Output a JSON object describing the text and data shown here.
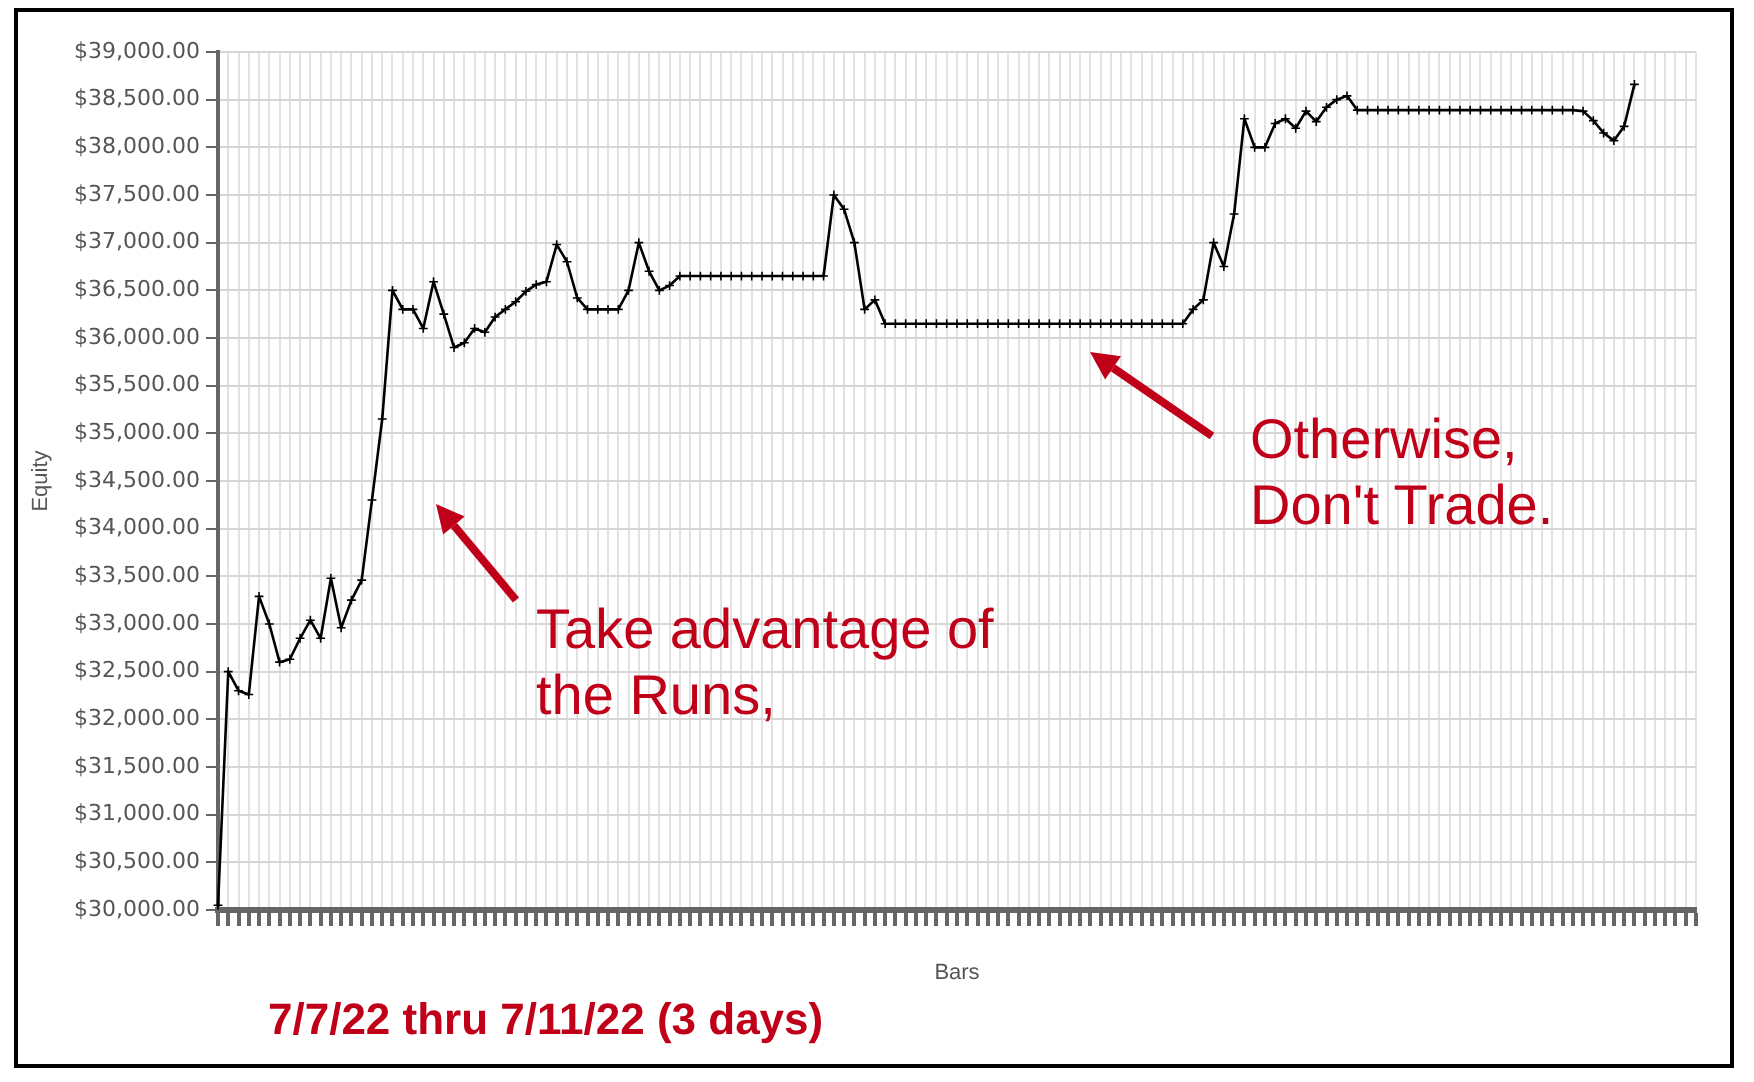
{
  "chart_data": {
    "type": "line",
    "xlabel": "Bars",
    "ylabel": "Equity",
    "grid": true,
    "marker": "cross",
    "categories": [
      null,
      null,
      null,
      null,
      null,
      null,
      null,
      null,
      null,
      null,
      null,
      null,
      null,
      null,
      null,
      null,
      null,
      null,
      null,
      null,
      null,
      null,
      null,
      null,
      null,
      null,
      null,
      null,
      null,
      null,
      null,
      null,
      null,
      null,
      null,
      null,
      null,
      null,
      null,
      null,
      null,
      null,
      null,
      null,
      null,
      null,
      null,
      null,
      null,
      null,
      null,
      null,
      null,
      null,
      null,
      null,
      null,
      null,
      null,
      null,
      null,
      null,
      null,
      null,
      null,
      null,
      null,
      null,
      null,
      null,
      null,
      null,
      null,
      null,
      null,
      null,
      null,
      null,
      null,
      null,
      null,
      null,
      null,
      null,
      null,
      null,
      null,
      null,
      null,
      null,
      null,
      null,
      null,
      null,
      null,
      null,
      null,
      null,
      null,
      null,
      null,
      null,
      null,
      null,
      null,
      null,
      null,
      null,
      null,
      null,
      null,
      null,
      null,
      null,
      null,
      null,
      null,
      null,
      null,
      null,
      null,
      null,
      null,
      null,
      null,
      null,
      null,
      null,
      null,
      null,
      null,
      null,
      null,
      null,
      null,
      null,
      null,
      null,
      null,
      null,
      null,
      null,
      null,
      null,
      null
    ],
    "series": [
      {
        "color": "#000000",
        "values": [
          30050,
          32500,
          32300,
          32260,
          33290,
          33000,
          32600,
          32630,
          32850,
          33040,
          32850,
          33480,
          32960,
          33250,
          33460,
          34300,
          35150,
          36500,
          36300,
          36300,
          36100,
          36590,
          36250,
          35900,
          35950,
          36100,
          36060,
          36220,
          36300,
          36380,
          36490,
          36560,
          36590,
          36980,
          36800,
          36420,
          36300,
          36300,
          36300,
          36300,
          36500,
          37000,
          36700,
          36500,
          36550,
          36650,
          36650,
          36650,
          36650,
          36650,
          36650,
          36650,
          36650,
          36650,
          36650,
          36650,
          36650,
          36650,
          36650,
          36650,
          37500,
          37350,
          37000,
          36300,
          36400,
          36150,
          36150,
          36150,
          36150,
          36150,
          36150,
          36150,
          36150,
          36150,
          36150,
          36150,
          36150,
          36150,
          36150,
          36150,
          36150,
          36150,
          36150,
          36150,
          36150,
          36150,
          36150,
          36150,
          36150,
          36150,
          36150,
          36150,
          36150,
          36150,
          36150,
          36300,
          36400,
          37000,
          36750,
          37300,
          38300,
          38000,
          38000,
          38250,
          38300,
          38200,
          38380,
          38270,
          38420,
          38500,
          38540,
          38390,
          38390,
          38390,
          38390,
          38390,
          38390,
          38390,
          38390,
          38390,
          38390,
          38390,
          38390,
          38390,
          38390,
          38390,
          38390,
          38390,
          38390,
          38390,
          38390,
          38390,
          38390,
          38380,
          38280,
          38150,
          38070,
          38220,
          38660,
          null,
          null,
          null,
          null,
          null,
          null
        ]
      }
    ],
    "ylim": [
      30000,
      39000
    ],
    "yticks": [
      {
        "value": 30000,
        "label": "$30,000.00"
      },
      {
        "value": 30500,
        "label": "$30,500.00"
      },
      {
        "value": 31000,
        "label": "$31,000.00"
      },
      {
        "value": 31500,
        "label": "$31,500.00"
      },
      {
        "value": 32000,
        "label": "$32,000.00"
      },
      {
        "value": 32500,
        "label": "$32,500.00"
      },
      {
        "value": 33000,
        "label": "$33,000.00"
      },
      {
        "value": 33500,
        "label": "$33,500.00"
      },
      {
        "value": 34000,
        "label": "$34,000.00"
      },
      {
        "value": 34500,
        "label": "$34,500.00"
      },
      {
        "value": 35000,
        "label": "$35,000.00"
      },
      {
        "value": 35500,
        "label": "$35,500.00"
      },
      {
        "value": 36000,
        "label": "$36,000.00"
      },
      {
        "value": 36500,
        "label": "$36,500.00"
      },
      {
        "value": 37000,
        "label": "$37,000.00"
      },
      {
        "value": 37500,
        "label": "$37,500.00"
      },
      {
        "value": 38000,
        "label": "$38,000.00"
      },
      {
        "value": 38500,
        "label": "$38,500.00"
      },
      {
        "value": 39000,
        "label": "$39,000.00"
      }
    ],
    "annotations": [
      "Take advantage of the Runs,",
      "Otherwise, Don't Trade.",
      "7/7/22 thru 7/11/22 (3 days)"
    ]
  }
}
